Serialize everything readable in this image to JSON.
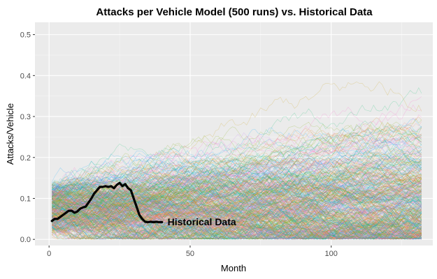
{
  "chart_data": {
    "type": "line",
    "title": "Attacks per Vehicle Model (500 runs) vs. Historical Data",
    "xlabel": "Month",
    "ylabel": "Attacks/Vehicle",
    "xlim": [
      -5,
      136
    ],
    "ylim": [
      -0.015,
      0.53
    ],
    "x_ticks": [
      0,
      50,
      100
    ],
    "x_tick_labels": [
      "0",
      "50",
      "100"
    ],
    "y_ticks": [
      0.0,
      0.1,
      0.2,
      0.3,
      0.4,
      0.5
    ],
    "y_tick_labels": [
      "0.0",
      "0.1",
      "0.2",
      "0.3",
      "0.4",
      "0.5"
    ],
    "grid": true,
    "panel_background": "#ebebeb",
    "grid_color": "#ffffff",
    "simulation": {
      "runs": 500,
      "month_start": 1,
      "month_end": 132,
      "colors": [
        "#F8766D",
        "#E7861B",
        "#C49A00",
        "#7CAE00",
        "#00BE67",
        "#00BFC4",
        "#00A9FF",
        "#C77CFF",
        "#FF61CC"
      ]
    },
    "series": [
      {
        "name": "Historical Data",
        "color": "#000000",
        "x": [
          1,
          2,
          3,
          4,
          5,
          6,
          7,
          8,
          9,
          10,
          11,
          12,
          13,
          14,
          15,
          16,
          17,
          18,
          19,
          20,
          21,
          22,
          23,
          24,
          25,
          26,
          27,
          28,
          29,
          30,
          31,
          32,
          33,
          34,
          35,
          36,
          37,
          38,
          39,
          40
        ],
        "y": [
          0.045,
          0.05,
          0.05,
          0.055,
          0.06,
          0.065,
          0.07,
          0.07,
          0.065,
          0.068,
          0.075,
          0.078,
          0.08,
          0.09,
          0.1,
          0.112,
          0.12,
          0.128,
          0.128,
          0.13,
          0.128,
          0.13,
          0.125,
          0.133,
          0.138,
          0.13,
          0.135,
          0.125,
          0.12,
          0.1,
          0.08,
          0.06,
          0.05,
          0.043,
          0.042,
          0.043,
          0.042,
          0.043,
          0.042,
          0.042
        ]
      }
    ],
    "annotation": {
      "text": "Historical Data",
      "x": 41,
      "y": 0.043
    }
  }
}
